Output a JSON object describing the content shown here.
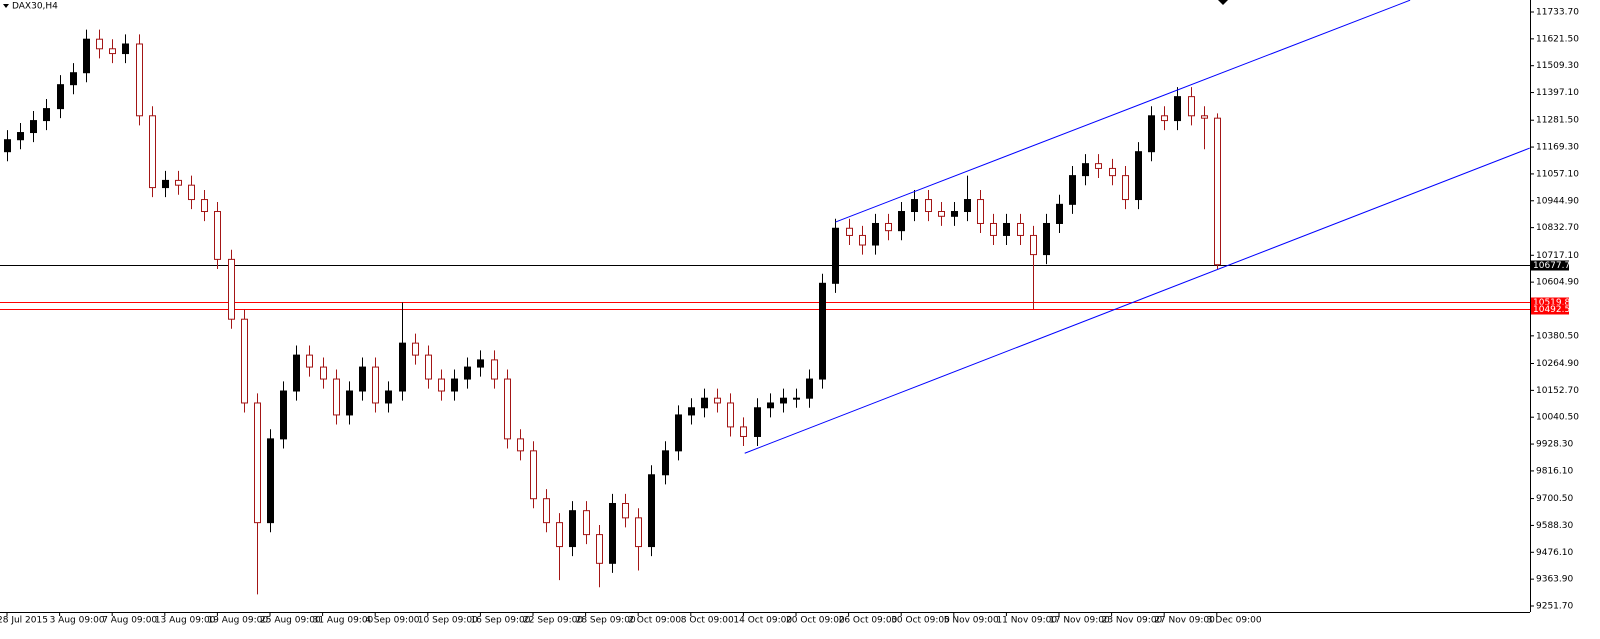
{
  "chart_data": {
    "type": "candlestick",
    "title": "DAX30,H4",
    "up_color": "#000000",
    "down_color": "#a31515",
    "ylim": [
      9226.6,
      11783.8
    ],
    "yticks": [
      {
        "value": 11733.7,
        "label": "11733.70"
      },
      {
        "value": 11621.5,
        "label": "11621.50"
      },
      {
        "value": 11509.3,
        "label": "11509.30"
      },
      {
        "value": 11397.1,
        "label": "11397.10"
      },
      {
        "value": 11281.5,
        "label": "11281.50"
      },
      {
        "value": 11169.3,
        "label": "11169.30"
      },
      {
        "value": 11057.1,
        "label": "11057.10"
      },
      {
        "value": 10944.9,
        "label": "10944.90"
      },
      {
        "value": 10832.7,
        "label": "10832.70"
      },
      {
        "value": 10717.1,
        "label": "10717.10"
      },
      {
        "value": 10604.9,
        "label": "10604.90"
      },
      {
        "value": 10380.5,
        "label": "10380.50"
      },
      {
        "value": 10264.9,
        "label": "10264.90"
      },
      {
        "value": 10152.7,
        "label": "10152.70"
      },
      {
        "value": 10040.5,
        "label": "10040.50"
      },
      {
        "value": 9928.3,
        "label": "9928.30"
      },
      {
        "value": 9816.1,
        "label": "9816.10"
      },
      {
        "value": 9700.5,
        "label": "9700.50"
      },
      {
        "value": 9588.3,
        "label": "9588.30"
      },
      {
        "value": 9476.1,
        "label": "9476.10"
      },
      {
        "value": 9363.9,
        "label": "9363.90"
      },
      {
        "value": 9251.7,
        "label": "9251.70"
      }
    ],
    "categories": [
      "28 Jul 2015",
      null,
      null,
      null,
      "3 Aug 09:00",
      null,
      null,
      null,
      "7 Aug 09:00",
      null,
      null,
      null,
      "13 Aug 09:00",
      null,
      null,
      null,
      "19 Aug 09:00",
      null,
      null,
      null,
      "25 Aug 09:00",
      null,
      null,
      null,
      "31 Aug 09:00",
      null,
      null,
      null,
      "4 Sep 09:00",
      null,
      null,
      null,
      "10 Sep 09:00",
      null,
      null,
      null,
      "16 Sep 09:00",
      null,
      null,
      null,
      "22 Sep 09:00",
      null,
      null,
      null,
      "28 Sep 09:00",
      null,
      null,
      null,
      "2 Oct 09:00",
      null,
      null,
      null,
      "8 Oct 09:00",
      null,
      null,
      null,
      "14 Oct 09:00",
      null,
      null,
      null,
      "20 Oct 09:00",
      null,
      null,
      null,
      "26 Oct 09:00",
      null,
      null,
      null,
      "30 Oct 09:00",
      null,
      null,
      null,
      "5 Nov 09:00",
      null,
      null,
      null,
      "11 Nov 09:00",
      null,
      null,
      null,
      "17 Nov 09:00",
      null,
      null,
      null,
      "23 Nov 09:00",
      null,
      null,
      null,
      "27 Nov 09:00",
      null,
      null,
      null,
      "3 Dec 09:00"
    ],
    "ohlc": [
      [
        11150,
        11240,
        11110,
        11200
      ],
      [
        11200,
        11270,
        11160,
        11230
      ],
      [
        11230,
        11320,
        11190,
        11280
      ],
      [
        11280,
        11370,
        11240,
        11330
      ],
      [
        11330,
        11470,
        11290,
        11430
      ],
      [
        11430,
        11520,
        11390,
        11480
      ],
      [
        11480,
        11660,
        11440,
        11620
      ],
      [
        11620,
        11660,
        11540,
        11580
      ],
      [
        11580,
        11620,
        11520,
        11560
      ],
      [
        11560,
        11640,
        11520,
        11600
      ],
      [
        11600,
        11640,
        11260,
        11300
      ],
      [
        11300,
        11340,
        10960,
        11000
      ],
      [
        11000,
        11070,
        10960,
        11030
      ],
      [
        11030,
        11070,
        10970,
        11010
      ],
      [
        11010,
        11050,
        10910,
        10950
      ],
      [
        10950,
        10990,
        10860,
        10900
      ],
      [
        10900,
        10940,
        10660,
        10700
      ],
      [
        10700,
        10740,
        10410,
        10450
      ],
      [
        10450,
        10490,
        10060,
        10100
      ],
      [
        10100,
        10140,
        9300,
        9600
      ],
      [
        9600,
        9990,
        9560,
        9950
      ],
      [
        9950,
        10190,
        9910,
        10150
      ],
      [
        10150,
        10340,
        10110,
        10300
      ],
      [
        10300,
        10340,
        10210,
        10250
      ],
      [
        10250,
        10290,
        10160,
        10200
      ],
      [
        10200,
        10240,
        10010,
        10050
      ],
      [
        10050,
        10190,
        10010,
        10150
      ],
      [
        10150,
        10290,
        10110,
        10250
      ],
      [
        10250,
        10290,
        10060,
        10100
      ],
      [
        10100,
        10190,
        10060,
        10150
      ],
      [
        10150,
        10520,
        10110,
        10350
      ],
      [
        10350,
        10390,
        10260,
        10300
      ],
      [
        10300,
        10340,
        10160,
        10200
      ],
      [
        10200,
        10240,
        10110,
        10150
      ],
      [
        10150,
        10240,
        10110,
        10200
      ],
      [
        10200,
        10290,
        10160,
        10250
      ],
      [
        10250,
        10320,
        10210,
        10280
      ],
      [
        10280,
        10320,
        10160,
        10200
      ],
      [
        10200,
        10240,
        9910,
        9950
      ],
      [
        9950,
        9990,
        9860,
        9900
      ],
      [
        9900,
        9940,
        9660,
        9700
      ],
      [
        9700,
        9740,
        9560,
        9600
      ],
      [
        9600,
        9640,
        9360,
        9500
      ],
      [
        9500,
        9690,
        9460,
        9650
      ],
      [
        9650,
        9690,
        9510,
        9550
      ],
      [
        9550,
        9590,
        9330,
        9430
      ],
      [
        9430,
        9720,
        9390,
        9680
      ],
      [
        9680,
        9720,
        9580,
        9620
      ],
      [
        9620,
        9660,
        9400,
        9500
      ],
      [
        9500,
        9840,
        9460,
        9800
      ],
      [
        9800,
        9940,
        9760,
        9900
      ],
      [
        9900,
        10090,
        9860,
        10050
      ],
      [
        10050,
        10120,
        10010,
        10080
      ],
      [
        10080,
        10160,
        10040,
        10120
      ],
      [
        10120,
        10160,
        10060,
        10100
      ],
      [
        10100,
        10140,
        9960,
        10000
      ],
      [
        10000,
        10040,
        9920,
        9960
      ],
      [
        9960,
        10120,
        9920,
        10080
      ],
      [
        10080,
        10140,
        10040,
        10100
      ],
      [
        10100,
        10160,
        10060,
        10120
      ],
      [
        10120,
        10160,
        10080,
        10120
      ],
      [
        10120,
        10240,
        10080,
        10200
      ],
      [
        10200,
        10640,
        10160,
        10600
      ],
      [
        10600,
        10870,
        10560,
        10830
      ],
      [
        10830,
        10870,
        10760,
        10800
      ],
      [
        10800,
        10840,
        10720,
        10760
      ],
      [
        10760,
        10890,
        10720,
        10850
      ],
      [
        10850,
        10890,
        10780,
        10820
      ],
      [
        10820,
        10940,
        10780,
        10900
      ],
      [
        10900,
        10990,
        10860,
        10950
      ],
      [
        10950,
        10990,
        10860,
        10900
      ],
      [
        10900,
        10940,
        10840,
        10880
      ],
      [
        10880,
        10940,
        10840,
        10900
      ],
      [
        10900,
        11050,
        10860,
        10950
      ],
      [
        10950,
        10990,
        10810,
        10850
      ],
      [
        10850,
        10890,
        10760,
        10800
      ],
      [
        10800,
        10890,
        10760,
        10850
      ],
      [
        10850,
        10890,
        10760,
        10800
      ],
      [
        10800,
        10840,
        10492,
        10720
      ],
      [
        10720,
        10890,
        10680,
        10850
      ],
      [
        10850,
        10970,
        10810,
        10930
      ],
      [
        10930,
        11090,
        10890,
        11050
      ],
      [
        11050,
        11140,
        11010,
        11100
      ],
      [
        11100,
        11140,
        11040,
        11080
      ],
      [
        11080,
        11120,
        11010,
        11050
      ],
      [
        11050,
        11090,
        10910,
        10950
      ],
      [
        10950,
        11190,
        10910,
        11150
      ],
      [
        11150,
        11340,
        11110,
        11300
      ],
      [
        11300,
        11340,
        11240,
        11280
      ],
      [
        11280,
        11420,
        11240,
        11380
      ],
      [
        11380,
        11420,
        11260,
        11300
      ],
      [
        11300,
        11340,
        11160,
        11290
      ],
      [
        11290,
        11310,
        10660,
        10677.7
      ]
    ],
    "hlines": [
      {
        "value": 10677.7,
        "label": "10677.70",
        "color": "#000000"
      },
      {
        "value": 10519.88,
        "label": "10519.88",
        "color": "#ff0000"
      },
      {
        "value": 10492.53,
        "label": "10492.53",
        "color": "#ff0000"
      }
    ],
    "trendlines": [
      {
        "color": "#0000ff",
        "x": [
          63,
          106.7
        ],
        "y": [
          10856,
          11783
        ]
      },
      {
        "color": "#0000ff",
        "x": [
          56.1,
          115.8
        ],
        "y": [
          9890,
          11165
        ]
      }
    ]
  }
}
